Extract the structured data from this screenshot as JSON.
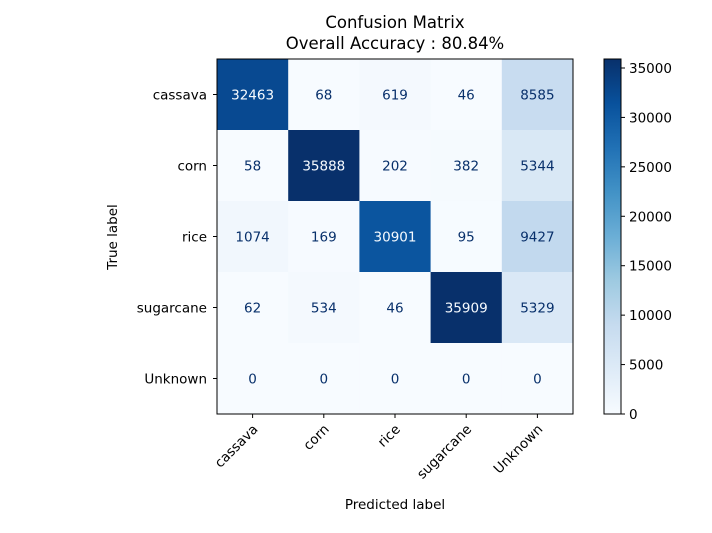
{
  "chart_data": {
    "type": "heatmap",
    "title": "Confusion Matrix",
    "subtitle": "Overall Accuracy : 80.84%",
    "xlabel": "Predicted label",
    "ylabel": "True label",
    "x_categories": [
      "cassava",
      "corn",
      "rice",
      "sugarcane",
      "Unknown"
    ],
    "y_categories": [
      "cassava",
      "corn",
      "rice",
      "sugarcane",
      "Unknown"
    ],
    "values": [
      [
        32463,
        68,
        619,
        46,
        8585
      ],
      [
        58,
        35888,
        202,
        382,
        5344
      ],
      [
        1074,
        169,
        30901,
        95,
        9427
      ],
      [
        62,
        534,
        46,
        35909,
        5329
      ],
      [
        0,
        0,
        0,
        0,
        0
      ]
    ],
    "colormap": "Blues",
    "colorbar": {
      "range": [
        0,
        35909
      ],
      "ticks": [
        0,
        5000,
        10000,
        15000,
        20000,
        25000,
        30000,
        35000
      ],
      "tick_labels": [
        "0",
        "5000",
        "10000",
        "15000",
        "20000",
        "25000",
        "30000",
        "35000"
      ]
    },
    "text_colors": {
      "dark_cell": "#f7fbff",
      "light_cell": "#08306b"
    },
    "grid": false
  }
}
